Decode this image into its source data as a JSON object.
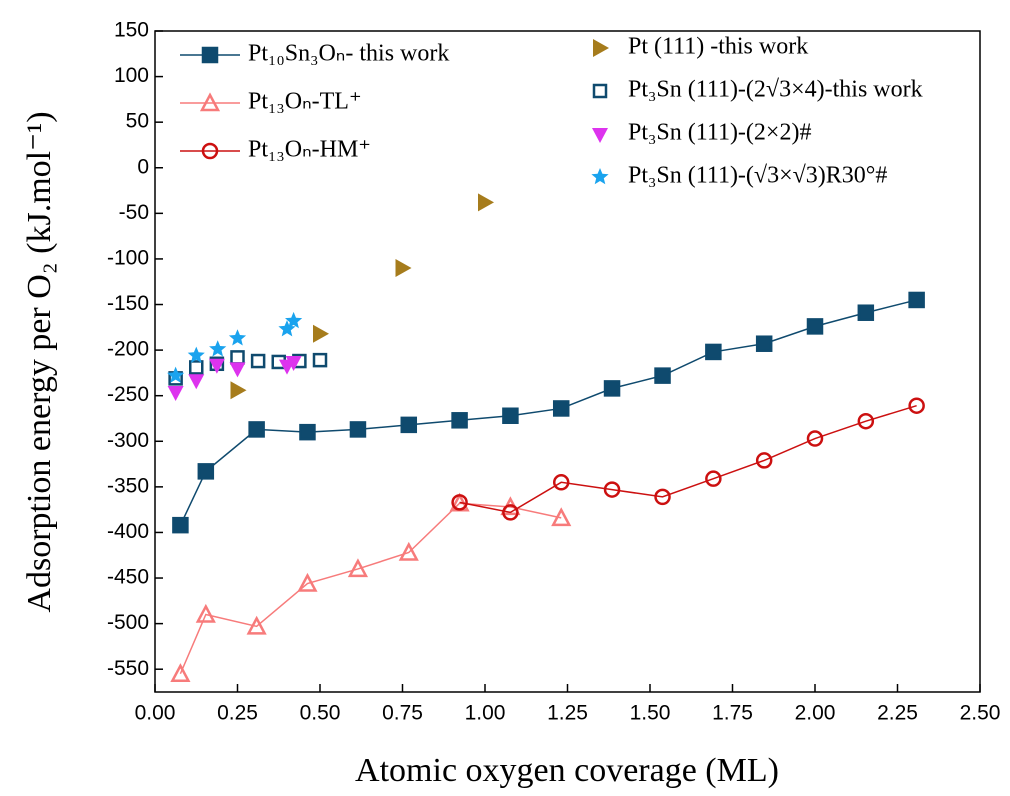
{
  "chart_data": {
    "type": "scatter",
    "x_label": "Atomic oxygen coverage (ML)",
    "y_label": "Adsorption energy per O₂ (kJ.mol⁻¹)",
    "xlim": [
      0,
      2.5
    ],
    "xticks": [
      {
        "value": 0,
        "label": "0.00"
      },
      {
        "value": 0.25,
        "label": "0.25"
      },
      {
        "value": 0.5,
        "label": "0.50"
      },
      {
        "value": 0.75,
        "label": "0.75"
      },
      {
        "value": 1,
        "label": "1.00"
      },
      {
        "value": 1.25,
        "label": "1.25"
      },
      {
        "value": 1.5,
        "label": "1.50"
      },
      {
        "value": 1.75,
        "label": "1.75"
      },
      {
        "value": 2,
        "label": "2.00"
      },
      {
        "value": 2.25,
        "label": "2.25"
      },
      {
        "value": 2.5,
        "label": "2.50"
      }
    ],
    "ylim": [
      -575,
      150
    ],
    "yticks": [
      150,
      100,
      50,
      0,
      -50,
      -100,
      -150,
      -200,
      -250,
      -300,
      -350,
      -400,
      -450,
      -500,
      -550
    ],
    "series": [
      {
        "name": "Pt₁₀Sn₃Oₙ- this work",
        "color": "#0f4a6e",
        "marker": "square",
        "line": true,
        "x": [
          0.077,
          0.154,
          0.308,
          0.462,
          0.615,
          0.769,
          0.923,
          1.077,
          1.231,
          1.385,
          1.538,
          1.692,
          1.846,
          2.0,
          2.154,
          2.308
        ],
        "values": [
          -392,
          -333,
          -287,
          -290,
          -287,
          -282,
          -277,
          -272,
          -264,
          -242,
          -228,
          -202,
          -193,
          -174,
          -159,
          -145
        ]
      },
      {
        "name": "Pt₁₃Oₙ-TL⁺",
        "color": "#f77b7b",
        "marker": "triangle-open",
        "line": true,
        "x": [
          0.077,
          0.154,
          0.308,
          0.462,
          0.615,
          0.769,
          0.923,
          1.077,
          1.231
        ],
        "values": [
          -555,
          -490,
          -503,
          -456,
          -440,
          -422,
          -368,
          -372,
          -384
        ]
      },
      {
        "name": "Pt₁₃Oₙ-HM⁺",
        "color": "#cc1010",
        "marker": "circle-open",
        "line": true,
        "x": [
          0.923,
          1.077,
          1.231,
          1.385,
          1.538,
          1.692,
          1.846,
          2.0,
          2.154,
          2.308
        ],
        "values": [
          -367,
          -378,
          -345,
          -353,
          -361,
          -341,
          -321,
          -297,
          -278,
          -261
        ]
      },
      {
        "name": "Pt (111) -this work",
        "color": "#a67c1c",
        "marker": "triangle-right",
        "line": false,
        "x": [
          0.25,
          0.5,
          0.75,
          1.0
        ],
        "values": [
          -244,
          -182,
          -110,
          -38
        ]
      },
      {
        "name": "Pt₃Sn (111)-(2√3×4)-this work",
        "color": "#0f4a6e",
        "marker": "square-open",
        "line": false,
        "x": [
          0.0625,
          0.125,
          0.1875,
          0.25,
          0.3125,
          0.375,
          0.4375,
          0.5
        ],
        "values": [
          -231,
          -219,
          -215,
          -208,
          -212,
          -213,
          -212,
          -211
        ]
      },
      {
        "name": "Pt₃Sn (111)-(2×2)#",
        "color": "#dd33ee",
        "marker": "triangle-down",
        "line": false,
        "x": [
          0.0625,
          0.125,
          0.1875,
          0.25,
          0.4,
          0.42
        ],
        "values": [
          -246,
          -233,
          -216,
          -220,
          -217,
          -213
        ]
      },
      {
        "name": "Pt₃Sn (111)-(√3×√3)R30°#",
        "color": "#1aa3ee",
        "marker": "star",
        "line": false,
        "x": [
          0.0625,
          0.125,
          0.19,
          0.25,
          0.4,
          0.42
        ],
        "values": [
          -228,
          -206,
          -199,
          -187,
          -177,
          -168
        ]
      }
    ]
  }
}
